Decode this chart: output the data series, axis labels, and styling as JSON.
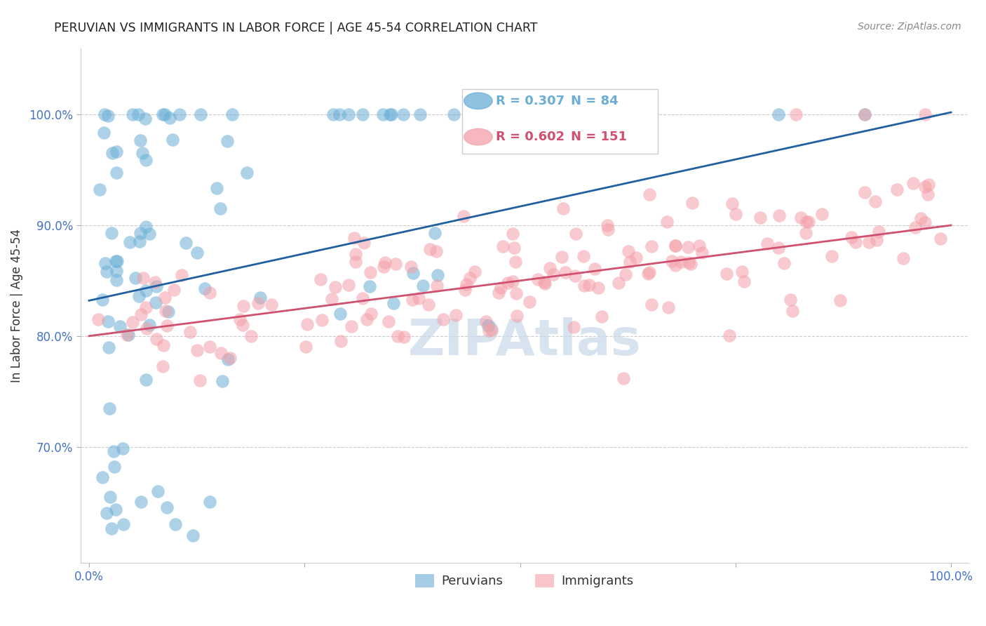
{
  "title": "PERUVIAN VS IMMIGRANTS IN LABOR FORCE | AGE 45-54 CORRELATION CHART",
  "source": "Source: ZipAtlas.com",
  "ylabel": "In Labor Force | Age 45-54",
  "color_blue": "#6aaed6",
  "color_pink": "#f4a0a8",
  "color_blue_line": "#2060a0",
  "color_pink_line": "#d05070",
  "color_axis_labels": "#4472C4",
  "legend_r1": "R = 0.307",
  "legend_n1": "N = 84",
  "legend_r2": "R = 0.602",
  "legend_n2": "N = 151",
  "blue_regression": [
    0.835,
    0.142
  ],
  "pink_regression": [
    0.8,
    0.1
  ],
  "xlim": [
    -0.01,
    1.02
  ],
  "ylim": [
    0.595,
    1.06
  ],
  "yticks": [
    0.7,
    0.8,
    0.9,
    1.0
  ],
  "ytick_labels": [
    "70.0%",
    "80.0%",
    "90.0%",
    "100.0%"
  ],
  "xticks": [
    0.0,
    0.25,
    0.5,
    0.75,
    1.0
  ],
  "xtick_labels": [
    "0.0%",
    "",
    "",
    "",
    "100.0%"
  ],
  "watermark_text": "ZIPAtlas",
  "watermark_color": "#c8d8ea"
}
